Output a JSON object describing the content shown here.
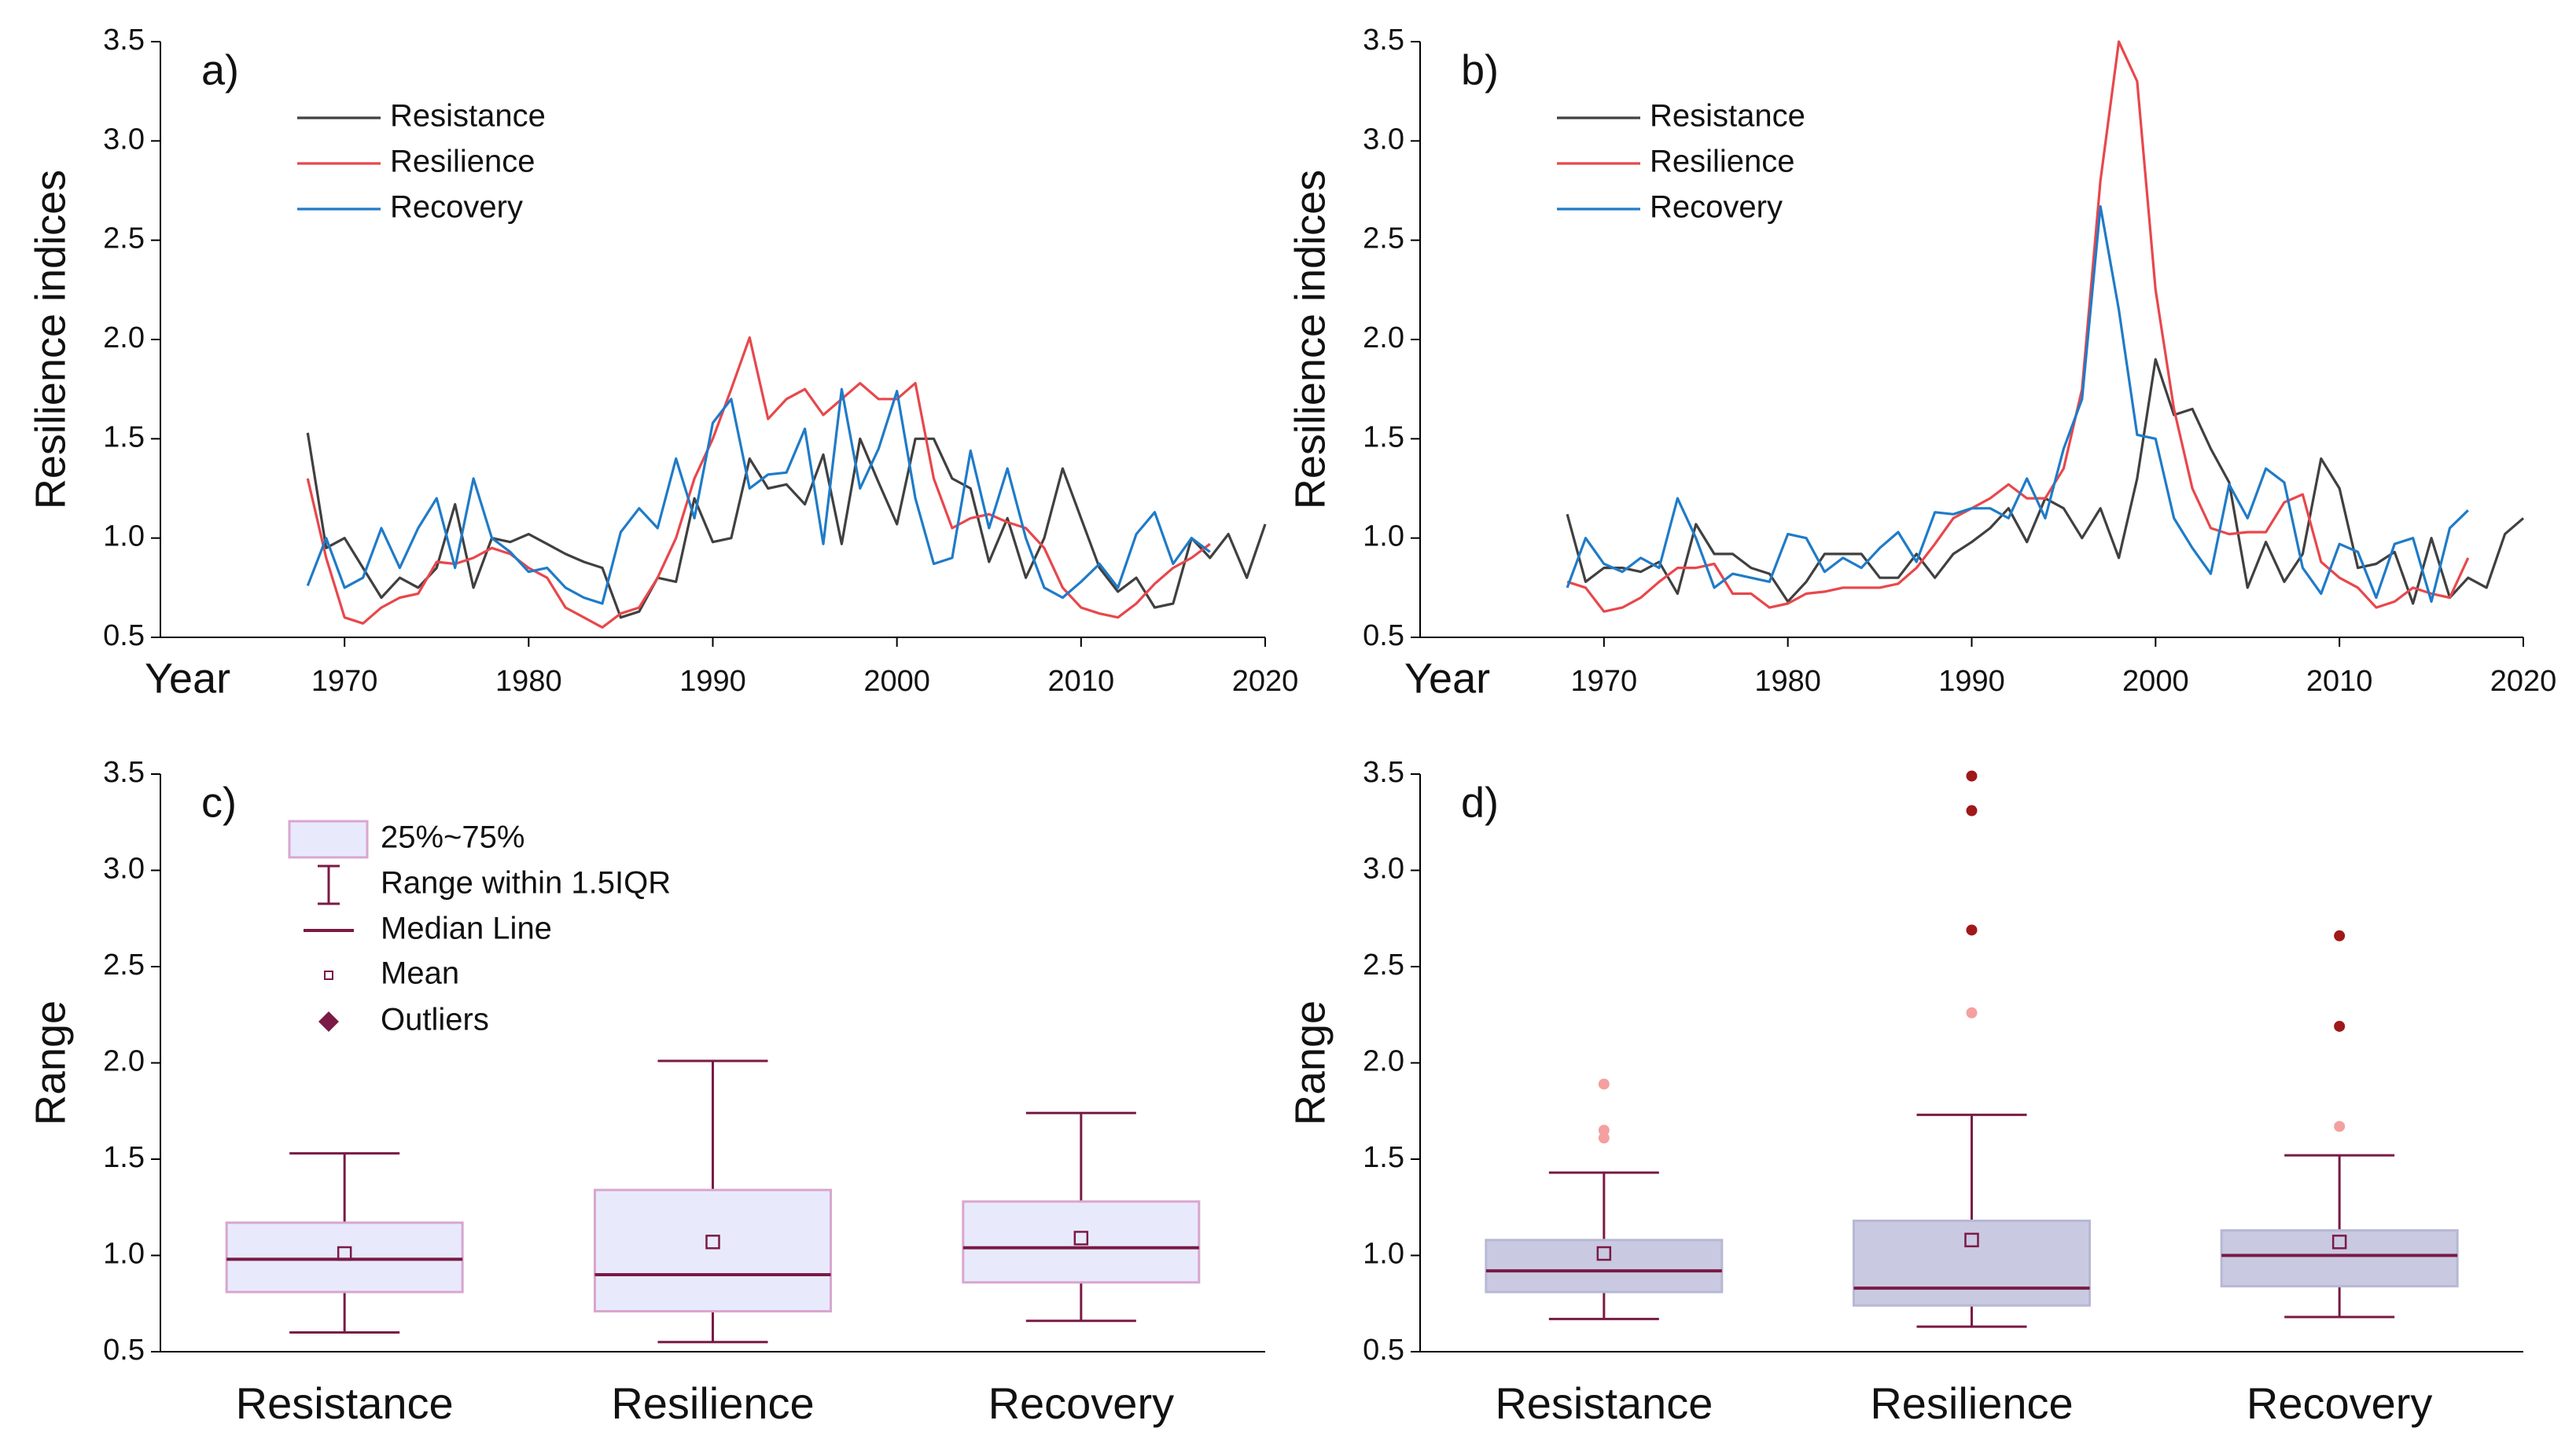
{
  "chart_data": [
    {
      "type": "line",
      "panel_label": "a)",
      "y_label": "Resilience indices",
      "x_label": "Year",
      "xlim": [
        1960,
        2020
      ],
      "xticks": [
        1970,
        1980,
        1990,
        2000,
        2010,
        2020
      ],
      "ylim": [
        0.5,
        3.5
      ],
      "yticks": [
        0.5,
        {
          "value": 1,
          "label": "1.0"
        },
        1.5,
        {
          "value": 2,
          "label": "2.0"
        },
        2.5,
        {
          "value": 3,
          "label": "3.0"
        },
        3.5
      ],
      "grid": false,
      "legend": "upper left",
      "series": [
        {
          "name": "Resistance",
          "color": "#404040",
          "x": [
            1968,
            1969,
            1970,
            1971,
            1972,
            1973,
            1974,
            1975,
            1976,
            1977,
            1978,
            1979,
            1980,
            1981,
            1982,
            1983,
            1984,
            1985,
            1986,
            1987,
            1988,
            1989,
            1990,
            1991,
            1992,
            1993,
            1994,
            1995,
            1996,
            1997,
            1998,
            1999,
            2000,
            2001,
            2002,
            2003,
            2004,
            2005,
            2006,
            2007,
            2008,
            2009,
            2010,
            2011,
            2012,
            2013,
            2014,
            2015,
            2016,
            2017,
            2018,
            2019,
            2020
          ],
          "values": [
            1.53,
            0.95,
            1.0,
            0.85,
            0.7,
            0.8,
            0.75,
            0.85,
            1.17,
            0.75,
            1.0,
            0.98,
            1.02,
            0.97,
            0.92,
            0.88,
            0.85,
            0.6,
            0.63,
            0.8,
            0.78,
            1.2,
            0.98,
            1.0,
            1.4,
            1.25,
            1.27,
            1.17,
            1.42,
            0.97,
            1.5,
            1.28,
            1.07,
            1.5,
            1.5,
            1.3,
            1.25,
            0.88,
            1.1,
            0.8,
            1.0,
            1.35,
            1.1,
            0.85,
            0.73,
            0.8,
            0.65,
            0.67,
            1.0,
            0.9,
            1.02,
            0.8,
            1.07
          ]
        },
        {
          "name": "Resilience",
          "color": "#e8474c",
          "x": [
            1968,
            1969,
            1970,
            1971,
            1972,
            1973,
            1974,
            1975,
            1976,
            1977,
            1978,
            1979,
            1980,
            1981,
            1982,
            1983,
            1984,
            1985,
            1986,
            1987,
            1988,
            1989,
            1990,
            1991,
            1992,
            1993,
            1994,
            1995,
            1996,
            1997,
            1998,
            1999,
            2000,
            2001,
            2002,
            2003,
            2004,
            2005,
            2006,
            2007,
            2008,
            2009,
            2010,
            2011,
            2012,
            2013,
            2014,
            2015,
            2016,
            2017
          ],
          "values": [
            1.3,
            0.9,
            0.6,
            0.57,
            0.65,
            0.7,
            0.72,
            0.88,
            0.87,
            0.9,
            0.95,
            0.92,
            0.85,
            0.8,
            0.65,
            0.6,
            0.55,
            0.62,
            0.65,
            0.8,
            1.0,
            1.3,
            1.5,
            1.75,
            2.01,
            1.6,
            1.7,
            1.75,
            1.62,
            1.7,
            1.78,
            1.7,
            1.7,
            1.78,
            1.3,
            1.05,
            1.1,
            1.12,
            1.08,
            1.05,
            0.95,
            0.75,
            0.65,
            0.62,
            0.6,
            0.67,
            0.77,
            0.85,
            0.9,
            0.97
          ]
        },
        {
          "name": "Recovery",
          "color": "#1f7bc8",
          "x": [
            1968,
            1969,
            1970,
            1971,
            1972,
            1973,
            1974,
            1975,
            1976,
            1977,
            1978,
            1979,
            1980,
            1981,
            1982,
            1983,
            1984,
            1985,
            1986,
            1987,
            1988,
            1989,
            1990,
            1991,
            1992,
            1993,
            1994,
            1995,
            1996,
            1997,
            1998,
            1999,
            2000,
            2001,
            2002,
            2003,
            2004,
            2005,
            2006,
            2007,
            2008,
            2009,
            2010,
            2011,
            2012,
            2013,
            2014,
            2015,
            2016,
            2017
          ],
          "values": [
            0.76,
            1.0,
            0.75,
            0.8,
            1.05,
            0.85,
            1.05,
            1.2,
            0.85,
            1.3,
            1.0,
            0.93,
            0.83,
            0.85,
            0.75,
            0.7,
            0.67,
            1.03,
            1.15,
            1.05,
            1.4,
            1.1,
            1.58,
            1.7,
            1.25,
            1.32,
            1.33,
            1.55,
            0.97,
            1.75,
            1.25,
            1.45,
            1.74,
            1.2,
            0.87,
            0.9,
            1.44,
            1.05,
            1.35,
            1.0,
            0.75,
            0.7,
            0.78,
            0.87,
            0.75,
            1.02,
            1.13,
            0.87,
            1.0,
            0.93
          ]
        }
      ]
    },
    {
      "type": "line",
      "panel_label": "b)",
      "y_label": "Resilience indices",
      "x_label": "Year",
      "xlim": [
        1960,
        2020
      ],
      "xticks": [
        1970,
        1980,
        1990,
        2000,
        2010,
        2020
      ],
      "ylim": [
        0.5,
        3.5
      ],
      "yticks": [
        0.5,
        {
          "value": 1,
          "label": "1.0"
        },
        1.5,
        {
          "value": 2,
          "label": "2.0"
        },
        2.5,
        {
          "value": 3,
          "label": "3.0"
        },
        3.5
      ],
      "grid": false,
      "legend": "upper left",
      "series": [
        {
          "name": "Resistance",
          "color": "#404040",
          "x": [
            1968,
            1969,
            1970,
            1971,
            1972,
            1973,
            1974,
            1975,
            1976,
            1977,
            1978,
            1979,
            1980,
            1981,
            1982,
            1983,
            1984,
            1985,
            1986,
            1987,
            1988,
            1989,
            1990,
            1991,
            1992,
            1993,
            1994,
            1995,
            1996,
            1997,
            1998,
            1999,
            2000,
            2001,
            2002,
            2003,
            2004,
            2005,
            2006,
            2007,
            2008,
            2009,
            2010,
            2011,
            2012,
            2013,
            2014,
            2015,
            2016,
            2017,
            2018,
            2019,
            2020
          ],
          "values": [
            1.12,
            0.78,
            0.85,
            0.85,
            0.83,
            0.88,
            0.72,
            1.07,
            0.92,
            0.92,
            0.85,
            0.82,
            0.68,
            0.78,
            0.92,
            0.92,
            0.92,
            0.8,
            0.8,
            0.92,
            0.8,
            0.92,
            0.98,
            1.05,
            1.15,
            0.98,
            1.2,
            1.15,
            1.0,
            1.15,
            0.9,
            1.3,
            1.9,
            1.62,
            1.65,
            1.45,
            1.28,
            0.75,
            0.98,
            0.78,
            0.92,
            1.4,
            1.25,
            0.85,
            0.87,
            0.93,
            0.67,
            1.0,
            0.7,
            0.8,
            0.75,
            1.02,
            1.1
          ]
        },
        {
          "name": "Resilience",
          "color": "#e8474c",
          "x": [
            1968,
            1969,
            1970,
            1971,
            1972,
            1973,
            1974,
            1975,
            1976,
            1977,
            1978,
            1979,
            1980,
            1981,
            1982,
            1983,
            1984,
            1985,
            1986,
            1987,
            1988,
            1989,
            1990,
            1991,
            1992,
            1993,
            1994,
            1995,
            1996,
            1997,
            1998,
            1999,
            2000,
            2001,
            2002,
            2003,
            2004,
            2005,
            2006,
            2007,
            2008,
            2009,
            2010,
            2011,
            2012,
            2013,
            2014,
            2015,
            2016,
            2017
          ],
          "values": [
            0.78,
            0.75,
            0.63,
            0.65,
            0.7,
            0.78,
            0.85,
            0.85,
            0.87,
            0.72,
            0.72,
            0.65,
            0.67,
            0.72,
            0.73,
            0.75,
            0.75,
            0.75,
            0.77,
            0.85,
            0.97,
            1.1,
            1.15,
            1.2,
            1.27,
            1.2,
            1.2,
            1.35,
            1.75,
            2.8,
            3.5,
            3.3,
            2.25,
            1.65,
            1.25,
            1.05,
            1.02,
            1.03,
            1.03,
            1.18,
            1.22,
            0.88,
            0.8,
            0.75,
            0.65,
            0.68,
            0.75,
            0.72,
            0.7,
            0.9
          ]
        },
        {
          "name": "Recovery",
          "color": "#1f7bc8",
          "x": [
            1968,
            1969,
            1970,
            1971,
            1972,
            1973,
            1974,
            1975,
            1976,
            1977,
            1978,
            1979,
            1980,
            1981,
            1982,
            1983,
            1984,
            1985,
            1986,
            1987,
            1988,
            1989,
            1990,
            1991,
            1992,
            1993,
            1994,
            1995,
            1996,
            1997,
            1998,
            1999,
            2000,
            2001,
            2002,
            2003,
            2004,
            2005,
            2006,
            2007,
            2008,
            2009,
            2010,
            2011,
            2012,
            2013,
            2014,
            2015,
            2016,
            2017
          ],
          "values": [
            0.75,
            1.0,
            0.87,
            0.83,
            0.9,
            0.85,
            1.2,
            1.0,
            0.75,
            0.82,
            0.8,
            0.78,
            1.02,
            1.0,
            0.83,
            0.9,
            0.85,
            0.95,
            1.03,
            0.88,
            1.13,
            1.12,
            1.15,
            1.15,
            1.1,
            1.3,
            1.1,
            1.45,
            1.7,
            2.67,
            2.15,
            1.52,
            1.5,
            1.1,
            0.95,
            0.82,
            1.27,
            1.1,
            1.35,
            1.28,
            0.85,
            0.72,
            0.97,
            0.93,
            0.7,
            0.97,
            1.0,
            0.68,
            1.05,
            1.14
          ]
        }
      ]
    },
    {
      "type": "box",
      "panel_label": "c)",
      "y_label": "Range",
      "ylim": [
        0.5,
        3.5
      ],
      "yticks": [
        0.5,
        {
          "value": 1,
          "label": "1.0"
        },
        1.5,
        {
          "value": 2,
          "label": "2.0"
        },
        2.5,
        {
          "value": 3,
          "label": "3.0"
        },
        3.5
      ],
      "categories": [
        "Resistance",
        "Resilience",
        "Recovery"
      ],
      "whisker_low": [
        0.6,
        0.55,
        0.66
      ],
      "q1": [
        0.81,
        0.71,
        0.86
      ],
      "median": [
        0.98,
        0.9,
        1.04
      ],
      "q3": [
        1.17,
        1.34,
        1.28
      ],
      "whisker_high": [
        1.53,
        2.01,
        1.74
      ],
      "mean": [
        1.01,
        1.07,
        1.09
      ],
      "outliers": [
        [],
        [],
        []
      ],
      "outlier_colors": [
        [],
        [],
        []
      ],
      "box_color": "#e8eafc",
      "edge_color": "#d9a6cf",
      "line_color": "#7a1a45",
      "legend": [
        "25%~75%",
        "Range within 1.5IQR",
        "Median Line",
        "Mean",
        "Outliers"
      ]
    },
    {
      "type": "box",
      "panel_label": "d)",
      "y_label": "Range",
      "ylim": [
        0.5,
        3.5
      ],
      "yticks": [
        0.5,
        {
          "value": 1,
          "label": "1.0"
        },
        1.5,
        {
          "value": 2,
          "label": "2.0"
        },
        2.5,
        {
          "value": 3,
          "label": "3.0"
        },
        3.5
      ],
      "categories": [
        "Resistance",
        "Resilience",
        "Recovery"
      ],
      "whisker_low": [
        0.67,
        0.63,
        0.68
      ],
      "q1": [
        0.81,
        0.74,
        0.84
      ],
      "median": [
        0.92,
        0.83,
        1.0
      ],
      "q3": [
        1.08,
        1.18,
        1.13
      ],
      "whisker_high": [
        1.43,
        1.73,
        1.52
      ],
      "mean": [
        1.01,
        1.08,
        1.07
      ],
      "outliers": [
        [
          1.89,
          1.65,
          1.61
        ],
        [
          2.26,
          2.69,
          3.31,
          3.49
        ],
        [
          1.67,
          2.19,
          2.66
        ]
      ],
      "outlier_colors": [
        [
          "#f4a0a0",
          "#f4a0a0",
          "#f4a0a0"
        ],
        [
          "#f4a0a0",
          "#a01818",
          "#a01818",
          "#a01818"
        ],
        [
          "#f4a0a0",
          "#a01818",
          "#a01818"
        ]
      ],
      "box_color": "#c9cae2",
      "edge_color": "#b7b8d4",
      "line_color": "#7a1a45"
    }
  ]
}
